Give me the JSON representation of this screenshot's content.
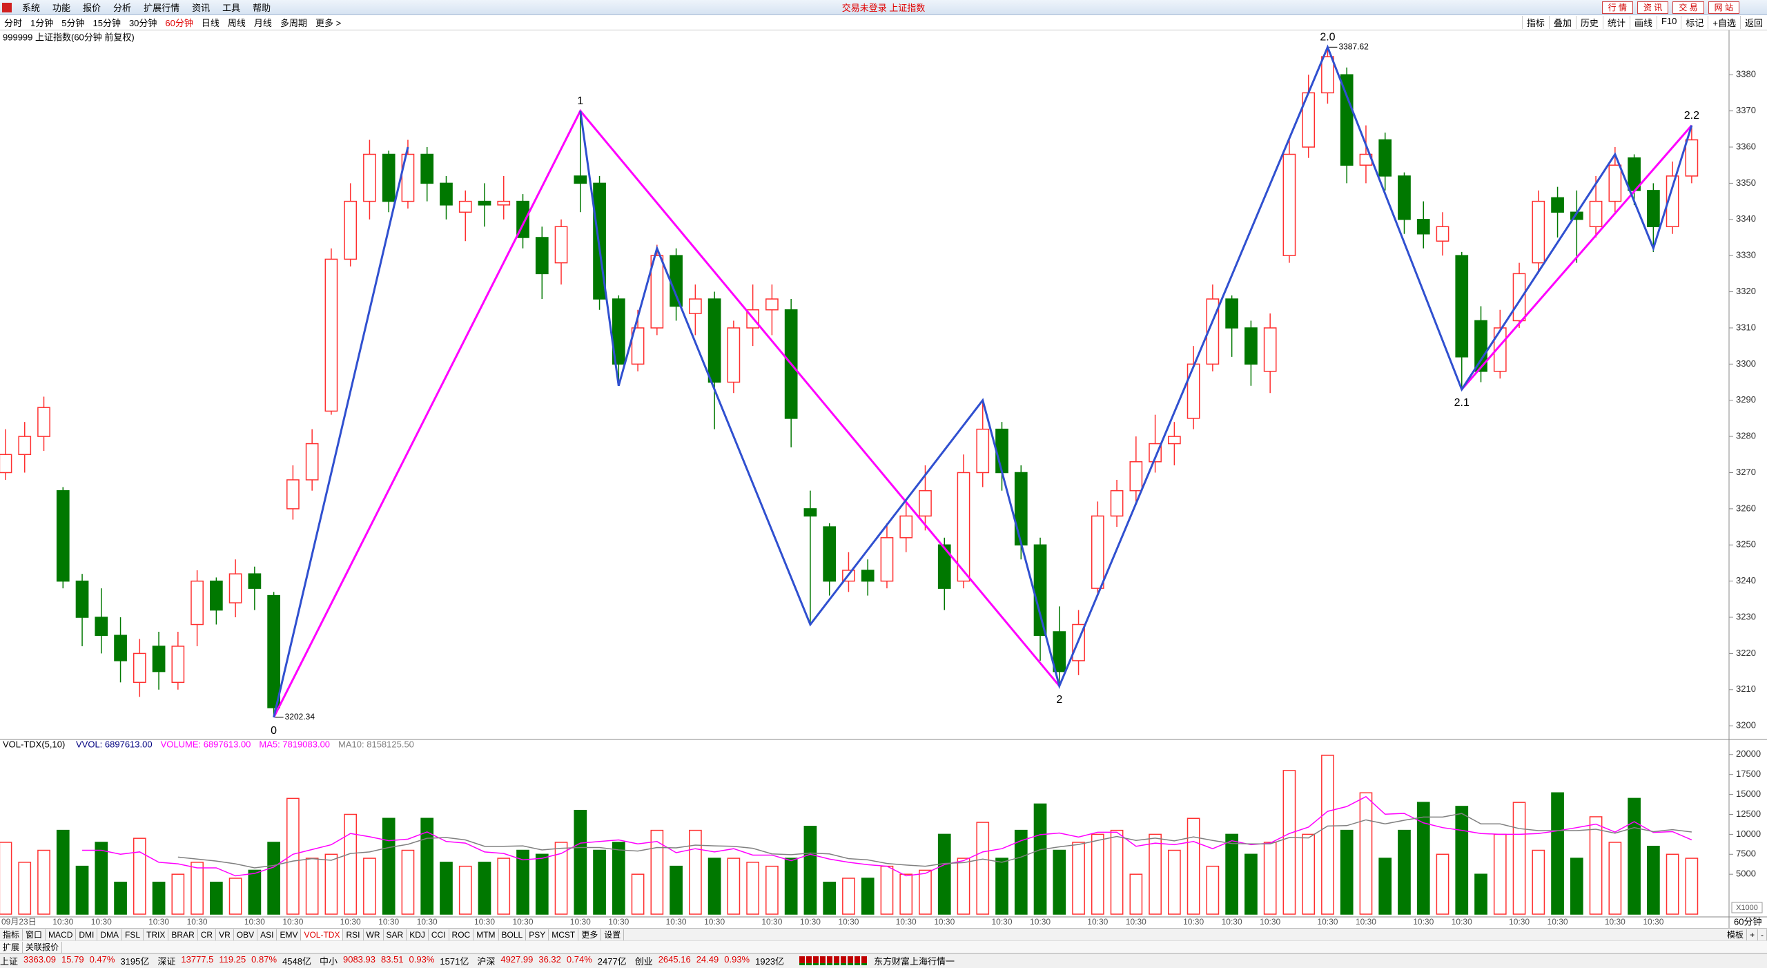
{
  "menu_bar": {
    "items": [
      "系统",
      "功能",
      "报价",
      "分析",
      "扩展行情",
      "资讯",
      "工具",
      "帮助"
    ],
    "title": "交易未登录 上证指数",
    "buttons": [
      "行 情",
      "资 讯",
      "交 易",
      "网 站"
    ]
  },
  "toolbar": {
    "periods": [
      "分时",
      "1分钟",
      "5分钟",
      "15分钟",
      "30分钟",
      "60分钟",
      "日线",
      "周线",
      "月线",
      "多周期",
      "更多 >"
    ],
    "active_index": 5,
    "tools": [
      "指标",
      "叠加",
      "历史",
      "统计",
      "画线",
      "F10",
      "标记",
      "+自选",
      "返回"
    ]
  },
  "chart_data": [
    {
      "type": "candlestick",
      "title": "999999 上证指数(60分钟 前复权)",
      "up_color": "#ff3030",
      "down_color": "#007800",
      "categories": [
        "09月23日",
        null,
        null,
        "10:30",
        null,
        "10:30",
        null,
        null,
        "10:30",
        null,
        "10:30",
        null,
        null,
        "10:30",
        null,
        "10:30",
        null,
        null,
        "10:30",
        null,
        "10:30",
        null,
        "10:30",
        null,
        null,
        "10:30",
        null,
        "10:30",
        null,
        null,
        "10:30",
        null,
        "10:30",
        null,
        null,
        "10:30",
        null,
        "10:30",
        null,
        null,
        "10:30",
        null,
        "10:30",
        null,
        "10:30",
        null,
        null,
        "10:30",
        null,
        "10:30",
        null,
        null,
        "10:30",
        null,
        "10:30",
        null,
        null,
        "10:30",
        null,
        "10:30",
        null,
        null,
        "10:30",
        null,
        "10:30",
        null,
        "10:30",
        null,
        null,
        "10:30",
        null,
        "10:30",
        null,
        null,
        "10:30",
        null,
        "10:30",
        null,
        null,
        "10:30",
        null,
        "10:30",
        null,
        null,
        "10:30",
        null,
        "10:30",
        null,
        null
      ],
      "open": [
        3270,
        3275,
        3280,
        3265,
        3240,
        3230,
        3225,
        3212,
        3222,
        3212,
        3228,
        3240,
        3234,
        3242,
        3236,
        3260,
        3268,
        3287,
        3329,
        3345,
        3358,
        3345,
        3358,
        3350,
        3342,
        3345,
        3344,
        3345,
        3335,
        3328,
        3352,
        3350,
        3318,
        3300,
        3310,
        3330,
        3314,
        3318,
        3295,
        3310,
        3315,
        3315,
        3260,
        3255,
        3240,
        3243,
        3240,
        3252,
        3258,
        3250,
        3240,
        3270,
        3282,
        3270,
        3250,
        3226,
        3218,
        3238,
        3258,
        3265,
        3273,
        3278,
        3285,
        3300,
        3318,
        3310,
        3298,
        3330,
        3360,
        3375,
        3380,
        3355,
        3362,
        3352,
        3340,
        3334,
        3330,
        3312,
        3298,
        3312,
        3328,
        3346,
        3342,
        3338,
        3345,
        3357,
        3348,
        3338,
        3352
      ],
      "high": [
        3282,
        3284,
        3291,
        3266,
        3242,
        3238,
        3230,
        3224,
        3226,
        3226,
        3243,
        3241,
        3246,
        3244,
        3237,
        3272,
        3282,
        3332,
        3350,
        3362,
        3359,
        3362,
        3360,
        3352,
        3348,
        3350,
        3352,
        3347,
        3338,
        3340,
        3370,
        3352,
        3319,
        3315,
        3333,
        3332,
        3322,
        3320,
        3312,
        3322,
        3322,
        3318,
        3265,
        3256,
        3248,
        3246,
        3256,
        3262,
        3272,
        3252,
        3275,
        3290,
        3284,
        3272,
        3252,
        3233,
        3232,
        3262,
        3268,
        3280,
        3286,
        3284,
        3305,
        3322,
        3319,
        3312,
        3314,
        3362,
        3380,
        3387.62,
        3382,
        3366,
        3364,
        3353,
        3345,
        3342,
        3331,
        3316,
        3315,
        3328,
        3348,
        3349,
        3348,
        3352,
        3360,
        3358,
        3350,
        3356,
        3366
      ],
      "low": [
        3268,
        3270,
        3276,
        3238,
        3222,
        3220,
        3212,
        3208,
        3210,
        3210,
        3222,
        3228,
        3230,
        3232,
        3202.34,
        3257,
        3265,
        3286,
        3327,
        3340,
        3342,
        3343,
        3345,
        3340,
        3334,
        3338,
        3340,
        3332,
        3318,
        3322,
        3342,
        3315,
        3294,
        3298,
        3308,
        3312,
        3308,
        3282,
        3292,
        3305,
        3308,
        3277,
        3228,
        3236,
        3237,
        3236,
        3238,
        3248,
        3254,
        3232,
        3238,
        3266,
        3265,
        3246,
        3218,
        3211,
        3214,
        3236,
        3255,
        3262,
        3270,
        3272,
        3282,
        3298,
        3302,
        3294,
        3292,
        3328,
        3357,
        3372,
        3350,
        3350,
        3348,
        3336,
        3332,
        3330,
        3293,
        3295,
        3296,
        3310,
        3325,
        3335,
        3328,
        3335,
        3342,
        3344,
        3331,
        3336,
        3350
      ],
      "close": [
        3275,
        3280,
        3288,
        3240,
        3230,
        3225,
        3218,
        3220,
        3215,
        3222,
        3240,
        3232,
        3242,
        3238,
        3205,
        3268,
        3278,
        3329,
        3345,
        3358,
        3345,
        3358,
        3350,
        3344,
        3345,
        3344,
        3345,
        3335,
        3325,
        3338,
        3350,
        3318,
        3300,
        3310,
        3330,
        3316,
        3318,
        3295,
        3310,
        3315,
        3318,
        3285,
        3258,
        3240,
        3243,
        3240,
        3252,
        3258,
        3265,
        3238,
        3270,
        3282,
        3270,
        3250,
        3225,
        3215,
        3228,
        3258,
        3265,
        3273,
        3278,
        3280,
        3300,
        3318,
        3310,
        3300,
        3310,
        3358,
        3375,
        3385,
        3355,
        3358,
        3352,
        3340,
        3336,
        3338,
        3302,
        3298,
        3310,
        3325,
        3345,
        3342,
        3340,
        3345,
        3355,
        3348,
        3338,
        3352,
        3362
      ],
      "ylim": [
        3196.6,
        3391.5
      ],
      "yticks": [
        3200,
        3210,
        3220,
        3230,
        3240,
        3250,
        3260,
        3270,
        3280,
        3290,
        3300,
        3310,
        3320,
        3330,
        3340,
        3350,
        3360,
        3370,
        3380
      ],
      "drawings": [
        {
          "color": "#ff00ff",
          "width": 3,
          "points": [
            [
              14,
              3202.34
            ],
            [
              30,
              3370
            ],
            [
              55,
              3211
            ]
          ]
        },
        {
          "color": "#ff00ff",
          "width": 3,
          "points": [
            [
              76,
              3293
            ],
            [
              88,
              3366
            ]
          ]
        },
        {
          "color": "#3050d0",
          "width": 3,
          "points": [
            [
              14,
              3202.34
            ],
            [
              21,
              3360
            ]
          ]
        },
        {
          "color": "#3050d0",
          "width": 3,
          "points": [
            [
              30,
              3370
            ],
            [
              32,
              3294
            ],
            [
              34,
              3332
            ],
            [
              42,
              3228
            ],
            [
              51,
              3290
            ],
            [
              55,
              3211
            ],
            [
              69,
              3387.62
            ],
            [
              76,
              3293
            ],
            [
              84,
              3358
            ],
            [
              86,
              3332
            ],
            [
              88,
              3366
            ]
          ]
        }
      ],
      "annotations": [
        {
          "text": "0",
          "x": 14,
          "y": 3202.34,
          "position": "below"
        },
        {
          "text": "1",
          "x": 30,
          "y": 3370,
          "position": "above"
        },
        {
          "text": "2",
          "x": 55,
          "y": 3211,
          "position": "below"
        },
        {
          "text": "2.0",
          "x": 69,
          "y": 3387.62,
          "position": "above"
        },
        {
          "text": "2.1",
          "x": 76,
          "y": 3293,
          "position": "below"
        },
        {
          "text": "2.2",
          "x": 88,
          "y": 3366,
          "position": "above"
        }
      ],
      "price_labels": [
        {
          "x": 14,
          "value": 3202.34
        },
        {
          "x": 69,
          "value": 3387.62
        }
      ]
    },
    {
      "type": "bar",
      "title": "VOL-TDX(5,10)",
      "unit": "X1000",
      "period": "60分钟",
      "legend": [
        {
          "text": "VVOL: 6897613.00",
          "color": "#000080"
        },
        {
          "text": "VOLUME: 6897613.00",
          "color": "#ff00ff"
        },
        {
          "text": "MA5: 7819083.00",
          "color": "#ff00ff"
        },
        {
          "text": "MA10: 8158125.50",
          "color": "#808080"
        }
      ],
      "values": [
        9000,
        6500,
        8000,
        10500,
        6000,
        9000,
        4000,
        9500,
        4000,
        5000,
        6500,
        4000,
        4500,
        5500,
        9000,
        14500,
        7000,
        7500,
        12500,
        7000,
        12000,
        8000,
        12000,
        6500,
        6000,
        6500,
        7000,
        8000,
        7500,
        9000,
        13000,
        8000,
        9000,
        5000,
        10500,
        6000,
        10500,
        7000,
        7000,
        6500,
        6000,
        7000,
        11000,
        4000,
        4500,
        4500,
        6000,
        5000,
        5500,
        10000,
        7000,
        11500,
        7000,
        10500,
        13800,
        8000,
        9000,
        10000,
        10500,
        5000,
        10000,
        8000,
        12000,
        6000,
        10000,
        7500,
        9000,
        18000,
        10000,
        19900,
        10500,
        15200,
        7000,
        10500,
        14000,
        7500,
        13500,
        5000,
        10000,
        14000,
        8000,
        15200,
        7000,
        12200,
        9000,
        14500,
        8500,
        7500,
        7000
      ],
      "lines": [
        {
          "color": "#ff00ff",
          "values": [
            null,
            null,
            null,
            null,
            8000,
            8000,
            7500,
            7800,
            6500,
            6300,
            5800,
            5800,
            4800,
            5100,
            5900,
            7500,
            8100,
            8700,
            10100,
            9700,
            9200,
            9400,
            10300,
            9100,
            8900,
            7800,
            7600,
            6800,
            7000,
            7600,
            8900,
            9100,
            9300,
            8800,
            9100,
            7700,
            8200,
            7800,
            8200,
            7400,
            7400,
            6700,
            7500,
            6900,
            6500,
            6200,
            6000,
            4800,
            5100,
            6200,
            6700,
            7800,
            8200,
            9200,
            9960,
            10160,
            9660,
            10260,
            10260,
            8500,
            8900,
            8700,
            9100,
            8200,
            9200,
            8700,
            8900,
            10100,
            10900,
            12880,
            13480,
            14720,
            12520,
            12620,
            11440,
            10840,
            10500,
            10100,
            10000,
            10000,
            10100,
            10440,
            10840,
            11280,
            10280,
            11580,
            10240,
            10340,
            9300
          ]
        },
        {
          "color": "#808080",
          "values": [
            null,
            null,
            null,
            null,
            null,
            null,
            null,
            null,
            null,
            7150,
            6900,
            6650,
            6300,
            5800,
            6100,
            6650,
            6950,
            6750,
            7600,
            7800,
            8350,
            8750,
            9500,
            9600,
            9300,
            8500,
            8500,
            8550,
            8050,
            8250,
            8350,
            8350,
            8050,
            7900,
            8350,
            8300,
            8650,
            8550,
            8500,
            8250,
            7550,
            7450,
            7650,
            7550,
            6950,
            6800,
            6350,
            6150,
            6000,
            6350,
            6450,
            6900,
            6500,
            7150,
            8080,
            8430,
            8730,
            9230,
            9730,
            9230,
            9530,
            9180,
            9680,
            9230,
            8850,
            8800,
            8800,
            9600,
            9550,
            11040,
            11090,
            11810,
            11310,
            11760,
            12160,
            12160,
            12610,
            11310,
            11310,
            10720,
            10470,
            10470,
            10470,
            10640,
            10140,
            10840,
            10340,
            10590,
            10290
          ]
        }
      ],
      "ylim": [
        0,
        20760
      ],
      "yticks": [
        5000,
        7500,
        10000,
        12500,
        15000,
        17500,
        20000
      ]
    }
  ],
  "indicator_tabs": {
    "items": [
      "指标",
      "窗口",
      "MACD",
      "DMI",
      "DMA",
      "FSL",
      "TRIX",
      "BRAR",
      "CR",
      "VR",
      "OBV",
      "ASI",
      "EMV",
      "VOL-TDX",
      "RSI",
      "WR",
      "SAR",
      "KDJ",
      "CCI",
      "ROC",
      "MTM",
      "BOLL",
      "PSY",
      "MCST",
      "更多",
      "设置"
    ],
    "active_index": 13,
    "right": [
      "模板",
      "+",
      "-"
    ]
  },
  "sub_tabs": [
    "扩展",
    "关联报价"
  ],
  "status_bar": {
    "quotes": [
      {
        "name": "上证",
        "price": "3363.09",
        "change": "15.79",
        "pct": "0.47%",
        "amount": "3195亿"
      },
      {
        "name": "深证",
        "price": "13777.5",
        "change": "119.25",
        "pct": "0.87%",
        "amount": "4548亿"
      },
      {
        "name": "中小",
        "price": "9083.93",
        "change": "83.51",
        "pct": "0.93%",
        "amount": "1571亿"
      },
      {
        "name": "沪深",
        "price": "4927.99",
        "change": "36.32",
        "pct": "0.74%",
        "amount": "2477亿"
      },
      {
        "name": "创业",
        "price": "2645.16",
        "change": "24.49",
        "pct": "0.93%",
        "amount": "1923亿"
      }
    ],
    "source": "东方财富上海行情一"
  }
}
